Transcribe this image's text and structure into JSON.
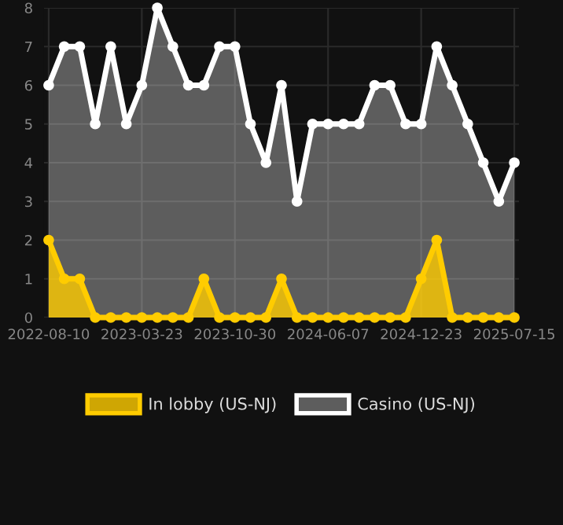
{
  "chart_data": {
    "type": "area",
    "categories": [
      "2022-08-10",
      null,
      null,
      null,
      null,
      null,
      "2023-03-23",
      null,
      null,
      null,
      null,
      null,
      "2023-10-30",
      null,
      null,
      null,
      null,
      null,
      "2024-06-07",
      null,
      null,
      null,
      null,
      null,
      "2024-12-23",
      null,
      null,
      null,
      null,
      null,
      "2025-07-15"
    ],
    "series": [
      {
        "name": "In lobby (US-NJ)",
        "color": "#ffcc00",
        "values": [
          2,
          1,
          1,
          0,
          0,
          0,
          0,
          0,
          0,
          0,
          1,
          0,
          0,
          0,
          0,
          1,
          0,
          0,
          0,
          0,
          0,
          0,
          0,
          0,
          1,
          2,
          0,
          0,
          0,
          0,
          0
        ]
      },
      {
        "name": "Casino (US-NJ)",
        "color": "#ffffff",
        "values": [
          6,
          7,
          7,
          5,
          7,
          5,
          6,
          8,
          7,
          6,
          6,
          7,
          7,
          5,
          4,
          6,
          3,
          5,
          5,
          5,
          5,
          6,
          6,
          5,
          5,
          7,
          6,
          5,
          4,
          3,
          4
        ]
      }
    ],
    "ylim": [
      0,
      8
    ],
    "yticks": [
      0,
      1,
      2,
      3,
      4,
      5,
      6,
      7,
      8
    ],
    "grid": true,
    "legend": "bottom",
    "marker": "circle",
    "line_style": "solid"
  }
}
